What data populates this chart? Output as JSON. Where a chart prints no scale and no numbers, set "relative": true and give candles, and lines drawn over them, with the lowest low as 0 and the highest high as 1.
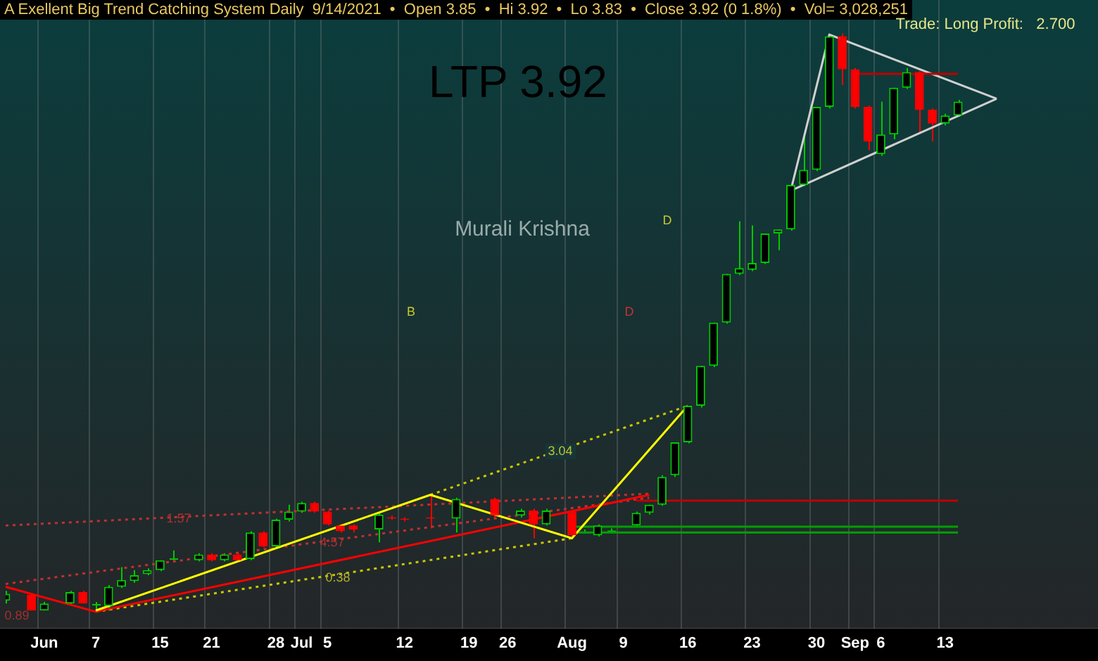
{
  "chart_data": {
    "type": "candlestick",
    "title": "A Exellent Big Trend Catching System Daily  9/14/2021  •  Open 3.85  •  Hi 3.92  •  Lo 3.83  •  Close 3.92 (0 1.8%)  •  Vol= 3,028,251",
    "annotations": [
      "Trade: Long Profit:   2.700",
      "LTP 3.92",
      "Murali Krishna",
      "B",
      "D",
      "D",
      "1.57",
      "4.57",
      "0.38",
      "3.04",
      "0.89"
    ],
    "relative": true,
    "grid": "x",
    "tick_labels": "x",
    "marker": "none",
    "categories": [
      null,
      null,
      null,
      "Jun",
      null,
      null,
      null,
      "7",
      null,
      null,
      null,
      null,
      "15",
      null,
      null,
      null,
      "21",
      null,
      null,
      null,
      null,
      "28",
      null,
      "Jul",
      null,
      "5",
      null,
      null,
      null,
      null,
      null,
      "12",
      null,
      null,
      null,
      null,
      "19",
      null,
      null,
      "26",
      null,
      null,
      null,
      null,
      "Aug",
      null,
      null,
      null,
      "9",
      null,
      null,
      null,
      null,
      "16",
      null,
      null,
      null,
      null,
      "23",
      null,
      null,
      null,
      null,
      "30",
      null,
      null,
      "Sep",
      null,
      "6",
      null,
      null,
      null,
      null,
      "13",
      null,
      null,
      null,
      null,
      null,
      null,
      null,
      null,
      null,
      null,
      null
    ],
    "ohlc": [
      [
        0.019,
        0.036,
        0.014,
        0.031
      ],
      null,
      [
        0.029,
        0.031,
        0.002,
        0.002
      ],
      [
        0.002,
        0.017,
        0.002,
        0.014
      ],
      null,
      [
        0.014,
        0.036,
        0.012,
        0.034
      ],
      [
        0.034,
        0.036,
        0.014,
        0.014
      ],
      [
        0.012,
        0.017,
        0,
        0.012
      ],
      [
        0.01,
        0.046,
        0.002,
        0.043
      ],
      [
        0.043,
        0.077,
        0.041,
        0.055
      ],
      [
        0.053,
        0.072,
        0.05,
        0.063
      ],
      [
        0.065,
        0.075,
        0.063,
        0.072
      ],
      [
        0.072,
        0.089,
        0.07,
        0.089
      ],
      [
        0.091,
        0.106,
        0.089,
        0.091
      ],
      null,
      [
        0.089,
        0.101,
        0.087,
        0.099
      ],
      [
        0.099,
        0.101,
        0.087,
        0.089
      ],
      [
        0.089,
        0.101,
        0.087,
        0.099
      ],
      [
        0.099,
        0.101,
        0.087,
        0.089
      ],
      [
        0.091,
        0.139,
        0.089,
        0.137
      ],
      [
        0.137,
        0.139,
        0.111,
        0.113
      ],
      [
        0.113,
        0.161,
        0.111,
        0.159
      ],
      [
        0.159,
        0.185,
        0.156,
        0.173
      ],
      [
        0.173,
        0.19,
        0.171,
        0.188
      ],
      [
        0.188,
        0.19,
        0.171,
        0.173
      ],
      [
        0.173,
        0.175,
        0.149,
        0.151
      ],
      [
        0.149,
        0.151,
        0.137,
        0.139
      ],
      [
        0.149,
        0.151,
        0.137,
        0.142
      ],
      null,
      [
        0.142,
        0.171,
        0.12,
        0.168
      ],
      [
        0.163,
        0.166,
        0.159,
        0.161
      ],
      [
        0.161,
        0.163,
        0.156,
        0.159
      ],
      null,
      [
        0.163,
        0.202,
        0.144,
        0.161
      ],
      null,
      [
        0.161,
        0.197,
        0.137,
        0.195
      ],
      null,
      null,
      [
        0.195,
        0.197,
        0.163,
        0.166
      ],
      null,
      [
        0.166,
        0.178,
        0.163,
        0.175
      ],
      [
        0.175,
        0.178,
        0.127,
        0.151
      ],
      [
        0.151,
        0.178,
        0.149,
        0.175
      ],
      null,
      [
        0.173,
        0.175,
        0.127,
        0.132
      ],
      [
        0.137,
        0.142,
        0.135,
        0.137
      ],
      [
        0.132,
        0.151,
        0.13,
        0.149
      ],
      [
        0.139,
        0.144,
        0.137,
        0.139
      ],
      null,
      [
        0.149,
        0.173,
        0.147,
        0.171
      ],
      [
        0.171,
        0.185,
        0.168,
        0.185
      ],
      [
        0.185,
        0.236,
        0.183,
        0.233
      ],
      [
        0.236,
        0.293,
        0.233,
        0.293
      ],
      [
        0.293,
        0.356,
        0.291,
        0.356
      ],
      [
        0.356,
        0.425,
        0.353,
        0.425
      ],
      [
        0.425,
        0.5,
        0.423,
        0.5
      ],
      [
        0.5,
        0.584,
        0.498,
        0.584
      ],
      [
        0.584,
        0.675,
        0.582,
        0.594
      ],
      [
        0.591,
        0.668,
        0.589,
        0.603
      ],
      [
        0.603,
        0.654,
        0.601,
        0.654
      ],
      [
        0.654,
        0.661,
        0.625,
        0.661
      ],
      [
        0.661,
        0.738,
        0.659,
        0.738
      ],
      [
        0.738,
        0.825,
        0.736,
        0.764
      ],
      [
        0.764,
        0.873,
        0.762,
        0.873
      ],
      [
        0.873,
        0.998,
        0.87,
        0.995
      ],
      [
        0.995,
        1,
        0.911,
        0.938
      ],
      [
        0.938,
        0.94,
        0.87,
        0.873
      ],
      [
        0.873,
        0.875,
        0.798,
        0.813
      ],
      [
        0.791,
        0.882,
        0.788,
        0.825
      ],
      [
        0.825,
        0.906,
        0.817,
        0.906
      ],
      [
        0.906,
        0.94,
        0.904,
        0.933
      ],
      [
        0.933,
        0.935,
        0.827,
        0.868
      ],
      [
        0.868,
        0.87,
        0.813,
        0.844
      ],
      [
        0.844,
        0.861,
        0.841,
        0.858
      ],
      [
        0.858,
        0.885,
        0.856,
        0.882
      ],
      null,
      null,
      null,
      null,
      null,
      null,
      null,
      null,
      null,
      null
    ],
    "series": [
      {
        "type": "line",
        "color": "#ffff00",
        "line_style": "solid",
        "values": [
          null,
          null,
          null,
          null,
          null,
          null,
          null,
          0.002,
          null,
          null,
          null,
          null,
          null,
          null,
          null,
          null,
          null,
          null,
          null,
          null,
          null,
          null,
          null,
          null,
          null,
          null,
          null,
          null,
          null,
          null,
          null,
          null,
          null,
          0.202,
          null,
          null,
          null,
          null,
          null,
          null,
          null,
          null,
          null,
          null,
          0.127,
          null,
          null,
          null,
          null,
          null,
          null,
          null,
          null,
          0.356,
          null,
          null,
          null,
          null,
          null,
          null,
          null,
          null,
          null,
          null,
          null,
          null,
          null,
          null,
          null,
          null,
          null,
          null,
          null,
          null,
          null,
          null,
          null,
          null,
          null,
          null,
          null,
          null,
          null,
          null,
          null
        ]
      },
      {
        "type": "line",
        "color": "#ff0000",
        "line_style": "solid",
        "values": [
          0.043,
          null,
          null,
          null,
          null,
          null,
          null,
          0,
          null,
          null,
          null,
          null,
          null,
          null,
          null,
          null,
          null,
          null,
          null,
          null,
          null,
          null,
          null,
          null,
          null,
          null,
          null,
          null,
          null,
          null,
          null,
          null,
          null,
          null,
          null,
          null,
          null,
          null,
          null,
          null,
          null,
          null,
          null,
          null,
          null,
          null,
          null,
          null,
          null,
          null,
          0.202,
          null,
          null,
          null,
          null,
          null,
          null,
          null,
          null,
          null,
          null,
          null,
          null,
          null,
          null,
          null,
          null,
          null,
          null,
          null,
          null,
          null,
          null,
          null,
          null,
          null,
          null,
          null,
          null,
          null,
          null,
          null,
          null,
          null,
          null
        ]
      },
      {
        "type": "line",
        "color": "#c8c800",
        "line_style": "dotted",
        "values": [
          null,
          null,
          null,
          null,
          null,
          null,
          null,
          0,
          null,
          null,
          null,
          null,
          null,
          null,
          null,
          null,
          null,
          null,
          null,
          null,
          null,
          null,
          null,
          null,
          null,
          null,
          null,
          null,
          null,
          null,
          null,
          null,
          null,
          null,
          null,
          null,
          null,
          null,
          null,
          null,
          null,
          null,
          null,
          null,
          0.127,
          null,
          null,
          null,
          null,
          null,
          null,
          null,
          null,
          null,
          null,
          null,
          null,
          null,
          null,
          null,
          null,
          null,
          null,
          null,
          null,
          null,
          null,
          null,
          null,
          null,
          null,
          null,
          null,
          null,
          null,
          null,
          null,
          null,
          null,
          null,
          null,
          null,
          null,
          null,
          null
        ]
      },
      {
        "type": "line",
        "color": "#c8c800",
        "line_style": "dotted",
        "values": [
          null,
          null,
          null,
          null,
          null,
          null,
          null,
          null,
          null,
          null,
          null,
          null,
          null,
          null,
          null,
          null,
          null,
          null,
          null,
          null,
          null,
          null,
          null,
          null,
          null,
          null,
          null,
          null,
          null,
          null,
          null,
          null,
          null,
          0.202,
          null,
          null,
          null,
          null,
          null,
          null,
          null,
          null,
          null,
          null,
          null,
          null,
          null,
          null,
          null,
          null,
          null,
          null,
          null,
          0.356,
          null,
          null,
          null,
          null,
          null,
          null,
          null,
          null,
          null,
          null,
          null,
          null,
          null,
          null,
          null,
          null,
          null,
          null,
          null,
          null,
          null,
          null,
          null,
          null,
          null,
          null,
          null,
          null,
          null,
          null,
          null
        ]
      },
      {
        "type": "line",
        "color": "#c03030",
        "line_style": "dotted",
        "values": [
          0.048,
          null,
          null,
          null,
          null,
          null,
          null,
          null,
          null,
          null,
          null,
          null,
          null,
          null,
          null,
          null,
          null,
          null,
          null,
          null,
          null,
          null,
          null,
          null,
          null,
          null,
          null,
          null,
          null,
          null,
          null,
          null,
          null,
          null,
          null,
          null,
          null,
          null,
          null,
          null,
          null,
          null,
          null,
          null,
          null,
          null,
          null,
          null,
          null,
          null,
          0.197,
          null,
          null,
          null,
          null,
          null,
          null,
          null,
          null,
          null,
          null,
          null,
          null,
          null,
          null,
          null,
          null,
          null,
          null,
          null,
          null,
          null,
          null,
          null,
          null,
          null,
          null,
          null,
          null,
          null,
          null,
          null,
          null,
          null,
          null
        ]
      },
      {
        "type": "line",
        "color": "#c03030",
        "line_style": "dotted",
        "values": [
          0.149,
          null,
          null,
          null,
          null,
          null,
          null,
          null,
          null,
          null,
          null,
          null,
          null,
          null,
          null,
          null,
          null,
          null,
          null,
          null,
          null,
          null,
          null,
          null,
          null,
          null,
          null,
          null,
          null,
          null,
          null,
          null,
          null,
          null,
          null,
          null,
          null,
          null,
          null,
          null,
          null,
          null,
          null,
          null,
          null,
          null,
          null,
          null,
          null,
          null,
          0.204,
          null,
          null,
          null,
          null,
          null,
          null,
          null,
          null,
          null,
          null,
          null,
          null,
          null,
          null,
          null,
          null,
          null,
          null,
          null,
          null,
          null,
          null,
          null,
          null,
          null,
          null,
          null,
          null,
          null,
          null,
          null,
          null,
          null,
          null
        ]
      },
      {
        "type": "line",
        "color": "#00a000",
        "line_style": "solid",
        "values": [
          null,
          null,
          null,
          null,
          null,
          null,
          null,
          null,
          null,
          null,
          null,
          null,
          null,
          null,
          null,
          null,
          null,
          null,
          null,
          null,
          null,
          null,
          null,
          null,
          null,
          null,
          null,
          null,
          null,
          null,
          null,
          null,
          null,
          null,
          null,
          null,
          null,
          null,
          null,
          null,
          null,
          null,
          null,
          null,
          0.147,
          null,
          null,
          null,
          null,
          null,
          null,
          null,
          null,
          null,
          null,
          null,
          null,
          null,
          null,
          null,
          null,
          null,
          null,
          null,
          null,
          null,
          null,
          null,
          null,
          null,
          null,
          null,
          null,
          null,
          0.147,
          null,
          null,
          null,
          null,
          null,
          null,
          null,
          null,
          null,
          null
        ]
      },
      {
        "type": "line",
        "color": "#00a000",
        "line_style": "solid",
        "values": [
          null,
          null,
          null,
          null,
          null,
          null,
          null,
          null,
          null,
          null,
          null,
          null,
          null,
          null,
          null,
          null,
          null,
          null,
          null,
          null,
          null,
          null,
          null,
          null,
          null,
          null,
          null,
          null,
          null,
          null,
          null,
          null,
          null,
          null,
          null,
          null,
          null,
          null,
          null,
          null,
          null,
          null,
          null,
          null,
          0.137,
          null,
          null,
          null,
          null,
          null,
          null,
          null,
          null,
          null,
          null,
          null,
          null,
          null,
          null,
          null,
          null,
          null,
          null,
          null,
          null,
          null,
          null,
          null,
          null,
          null,
          null,
          null,
          null,
          null,
          0.137,
          null,
          null,
          null,
          null,
          null,
          null,
          null,
          null,
          null,
          null
        ]
      },
      {
        "type": "line",
        "color": "#c00000",
        "line_style": "solid",
        "values": [
          null,
          null,
          null,
          null,
          null,
          null,
          null,
          null,
          null,
          null,
          null,
          null,
          null,
          null,
          null,
          null,
          null,
          null,
          null,
          null,
          null,
          null,
          null,
          null,
          null,
          null,
          null,
          null,
          null,
          null,
          null,
          null,
          null,
          null,
          null,
          null,
          null,
          null,
          null,
          null,
          null,
          null,
          null,
          null,
          null,
          null,
          null,
          null,
          null,
          0.192,
          null,
          null,
          null,
          null,
          null,
          null,
          null,
          null,
          null,
          null,
          null,
          null,
          null,
          null,
          null,
          null,
          null,
          null,
          null,
          null,
          null,
          null,
          null,
          null,
          0.192,
          null,
          null,
          null,
          null,
          null,
          null,
          null,
          null,
          null,
          null
        ]
      },
      {
        "type": "line",
        "color": "#c00000",
        "line_style": "solid",
        "values": [
          null,
          null,
          null,
          null,
          null,
          null,
          null,
          null,
          null,
          null,
          null,
          null,
          null,
          null,
          null,
          null,
          null,
          null,
          null,
          null,
          null,
          null,
          null,
          null,
          null,
          null,
          null,
          null,
          null,
          null,
          null,
          null,
          null,
          null,
          null,
          null,
          null,
          null,
          null,
          null,
          null,
          null,
          null,
          null,
          null,
          null,
          null,
          null,
          null,
          null,
          null,
          null,
          null,
          null,
          null,
          null,
          null,
          null,
          null,
          null,
          null,
          null,
          null,
          null,
          null,
          null,
          0.93,
          null,
          null,
          null,
          null,
          null,
          null,
          null,
          0.93,
          null,
          null,
          null,
          null,
          null,
          null,
          null,
          null,
          null,
          null
        ]
      },
      {
        "type": "line",
        "color": "#d0d0d0",
        "line_style": "solid",
        "values": [
          null,
          null,
          null,
          null,
          null,
          null,
          null,
          null,
          null,
          null,
          null,
          null,
          null,
          null,
          null,
          null,
          null,
          null,
          null,
          null,
          null,
          null,
          null,
          null,
          null,
          null,
          null,
          null,
          null,
          null,
          null,
          null,
          null,
          null,
          null,
          null,
          null,
          null,
          null,
          null,
          null,
          null,
          null,
          null,
          null,
          null,
          null,
          null,
          null,
          null,
          null,
          null,
          null,
          null,
          null,
          null,
          null,
          null,
          null,
          null,
          null,
          0.728,
          null,
          null,
          0.998,
          null,
          null,
          null,
          null,
          null,
          null,
          null,
          null,
          null,
          null,
          null,
          null,
          0.887,
          null,
          null,
          null,
          null,
          null,
          null,
          null
        ]
      },
      {
        "type": "line",
        "color": "#d0d0d0",
        "line_style": "solid",
        "values": [
          null,
          null,
          null,
          null,
          null,
          null,
          null,
          null,
          null,
          null,
          null,
          null,
          null,
          null,
          null,
          null,
          null,
          null,
          null,
          null,
          null,
          null,
          null,
          null,
          null,
          null,
          null,
          null,
          null,
          null,
          null,
          null,
          null,
          null,
          null,
          null,
          null,
          null,
          null,
          null,
          null,
          null,
          null,
          null,
          null,
          null,
          null,
          null,
          null,
          null,
          null,
          null,
          null,
          null,
          null,
          null,
          null,
          null,
          null,
          null,
          null,
          0.728,
          null,
          null,
          null,
          null,
          null,
          null,
          null,
          null,
          null,
          null,
          null,
          null,
          null,
          null,
          null,
          0.887,
          null,
          null,
          null,
          null,
          null,
          null,
          null
        ]
      }
    ]
  }
}
